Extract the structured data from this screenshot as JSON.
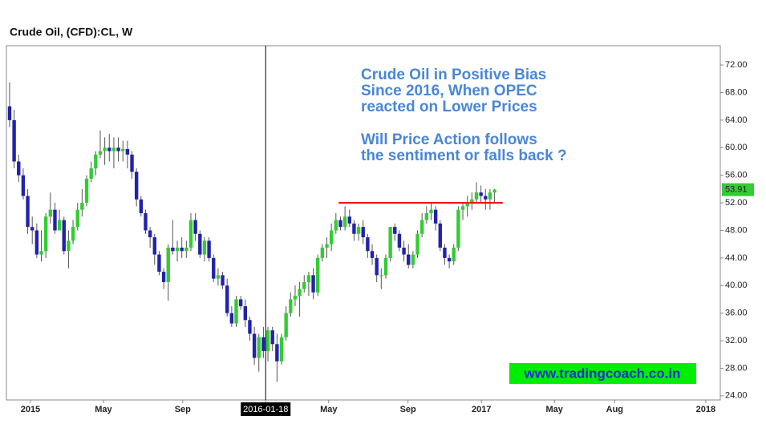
{
  "chart_data": {
    "type": "candlestick",
    "title": "Crude Oil, (CFD):CL, W",
    "annotation_lines": [
      "Crude Oil in Positive Bias",
      "Since 2016, When OPEC",
      "reacted on Lower Prices",
      "Will Price Action follows",
      "the sentiment or falls back ?"
    ],
    "website": "www.tradingcoach.co.in",
    "up_color": "#33cc33",
    "down_color": "#2222aa",
    "open": [
      66,
      64,
      58,
      56,
      53,
      48.5,
      48,
      44.5,
      45,
      50,
      51,
      48,
      49.5,
      45,
      46.5,
      48.5,
      51,
      52,
      55.5,
      57,
      59,
      59.5,
      60,
      59.5,
      60,
      59.5,
      59.8,
      59,
      56.5,
      52.5,
      50.5,
      48,
      47,
      44.5,
      42,
      40.5,
      45.5,
      45,
      45.5,
      45,
      45.5,
      49.5,
      47.5,
      44.5,
      46.5,
      44,
      41,
      41.5,
      40,
      36,
      34.5,
      38,
      37,
      35,
      33,
      29.5,
      32.5,
      30.5,
      33.5,
      31.5,
      29,
      32.5,
      36,
      38,
      38.5,
      39.5,
      40.5,
      41.5,
      39,
      44,
      45.5,
      46,
      48,
      49.5,
      48.5,
      50,
      49,
      47.5,
      48.5,
      47,
      45,
      44,
      41.5,
      41.5,
      44,
      48.5,
      47.5,
      45.5,
      44.5,
      43,
      44.5,
      47.5,
      49.5,
      50.5,
      51,
      49,
      45.5,
      44,
      43.5,
      45.5,
      51,
      51.5,
      52,
      52.5,
      53.5,
      53,
      52.5,
      53.5
    ],
    "high": [
      69.5,
      65.5,
      59,
      57,
      54,
      50,
      49,
      48,
      50.5,
      53.5,
      52,
      51,
      50,
      48,
      49.5,
      52,
      54,
      56,
      58,
      59.5,
      62.5,
      61.5,
      62,
      61.5,
      61.5,
      61,
      61,
      59.5,
      57,
      53,
      51,
      48.5,
      47.5,
      45,
      42.5,
      46,
      49.5,
      46.5,
      47,
      46.5,
      50.5,
      50.5,
      48,
      47,
      47,
      44.5,
      42.5,
      42,
      41,
      37,
      38.5,
      38.5,
      38,
      35.5,
      34,
      33,
      34,
      34,
      34,
      33,
      33,
      37,
      39,
      40,
      40.5,
      41.5,
      42,
      42.5,
      44.5,
      46,
      47,
      49,
      50.5,
      50,
      51.5,
      51,
      49.5,
      49,
      49.5,
      47.5,
      46,
      44.5,
      42.5,
      44.5,
      48.5,
      49,
      48,
      46.5,
      46,
      45,
      48,
      50.5,
      51.5,
      52,
      51.5,
      49.5,
      46,
      44.5,
      46,
      51.5,
      52,
      53,
      53.5,
      55,
      54.5,
      54,
      54,
      54
    ],
    "low": [
      63,
      57,
      55,
      52.5,
      47.5,
      46,
      44,
      43.5,
      44,
      49,
      47.5,
      48,
      44.5,
      42.5,
      46,
      48,
      50,
      51.5,
      55,
      56,
      58.5,
      57.5,
      58,
      57,
      58,
      58,
      57,
      55.5,
      51.5,
      50,
      47.5,
      45.5,
      43,
      41.5,
      39.5,
      37.8,
      44.5,
      43.5,
      44,
      44,
      45,
      46.5,
      44,
      43.5,
      43.5,
      40.5,
      40,
      39.5,
      35.5,
      34,
      34,
      36.5,
      34,
      32,
      28.5,
      27.5,
      29.5,
      29,
      30.5,
      26,
      28.5,
      32,
      35.5,
      37,
      35.5,
      39,
      38.5,
      38,
      38.5,
      43.5,
      44,
      45,
      47.5,
      48,
      48,
      48.5,
      46.5,
      46.5,
      46,
      44,
      43,
      40.5,
      39.5,
      41,
      43.5,
      46.5,
      45,
      43.5,
      42.5,
      42.5,
      44,
      47,
      49,
      49.5,
      48,
      45,
      43,
      42.5,
      43,
      45,
      49.5,
      50,
      51,
      52,
      52,
      51,
      51,
      52
    ],
    "close": [
      64,
      58,
      56,
      53,
      48.5,
      48,
      44.5,
      45,
      50,
      51,
      48,
      49.5,
      45,
      46.5,
      48.5,
      51,
      52,
      55.5,
      57,
      59,
      59.5,
      60,
      59.5,
      60,
      59.5,
      59.8,
      59,
      56.5,
      52.5,
      50.5,
      48,
      47,
      44.5,
      42,
      40.5,
      45.5,
      45,
      45.5,
      45,
      45.5,
      49.5,
      47.5,
      44.5,
      46.5,
      44,
      41,
      41.5,
      40,
      36,
      34.5,
      38,
      37,
      35,
      33,
      29.5,
      32.5,
      30.5,
      33.5,
      31.5,
      29,
      32.5,
      36,
      38,
      38.5,
      39.5,
      40.5,
      41.5,
      39,
      44,
      45.5,
      46,
      48,
      49.5,
      48.5,
      50,
      49,
      47.5,
      48.5,
      47,
      45,
      44,
      41.5,
      41.5,
      44,
      48.5,
      47.5,
      45.5,
      44.5,
      43,
      44.5,
      47.5,
      49.5,
      50.5,
      51,
      49,
      45.5,
      44,
      43.5,
      45.5,
      51,
      51.5,
      52,
      52.5,
      53.5,
      53,
      52.5,
      53.5,
      53.91
    ],
    "xlim": [
      -0.7,
      156.8
    ],
    "xticks": [
      {
        "value": 4.6,
        "label": "2015"
      },
      {
        "value": 20.7,
        "label": "May"
      },
      {
        "value": 38.2,
        "label": "Sep"
      },
      {
        "value": 56.5,
        "label": "2016-01-18"
      },
      {
        "value": 70.4,
        "label": "May"
      },
      {
        "value": 87.9,
        "label": "Sep"
      },
      {
        "value": 104.1,
        "label": "2017"
      },
      {
        "value": 120.2,
        "label": "May"
      },
      {
        "value": 133.5,
        "label": "Aug"
      },
      {
        "value": 153.6,
        "label": "2018"
      }
    ],
    "crosshair_tick": 3,
    "ylim": [
      23.4,
      74.8
    ],
    "yticks": [
      {
        "value": 24,
        "label": "24.00"
      },
      {
        "value": 28,
        "label": "28.00"
      },
      {
        "value": 32,
        "label": "32.00"
      },
      {
        "value": 36,
        "label": "36.00"
      },
      {
        "value": 40,
        "label": "40.00"
      },
      {
        "value": 44,
        "label": "44.00"
      },
      {
        "value": 48,
        "label": "48.00"
      },
      {
        "value": 52,
        "label": "52.00"
      },
      {
        "value": 56,
        "label": "56.00"
      },
      {
        "value": 60,
        "label": "60.00"
      },
      {
        "value": 64,
        "label": "64.00"
      },
      {
        "value": 68,
        "label": "68.00"
      },
      {
        "value": 72,
        "label": "72.00"
      }
    ],
    "lines": [
      {
        "y": 52,
        "x": [
          72.6,
          108.8
        ],
        "color": "#ff0000"
      }
    ]
  }
}
